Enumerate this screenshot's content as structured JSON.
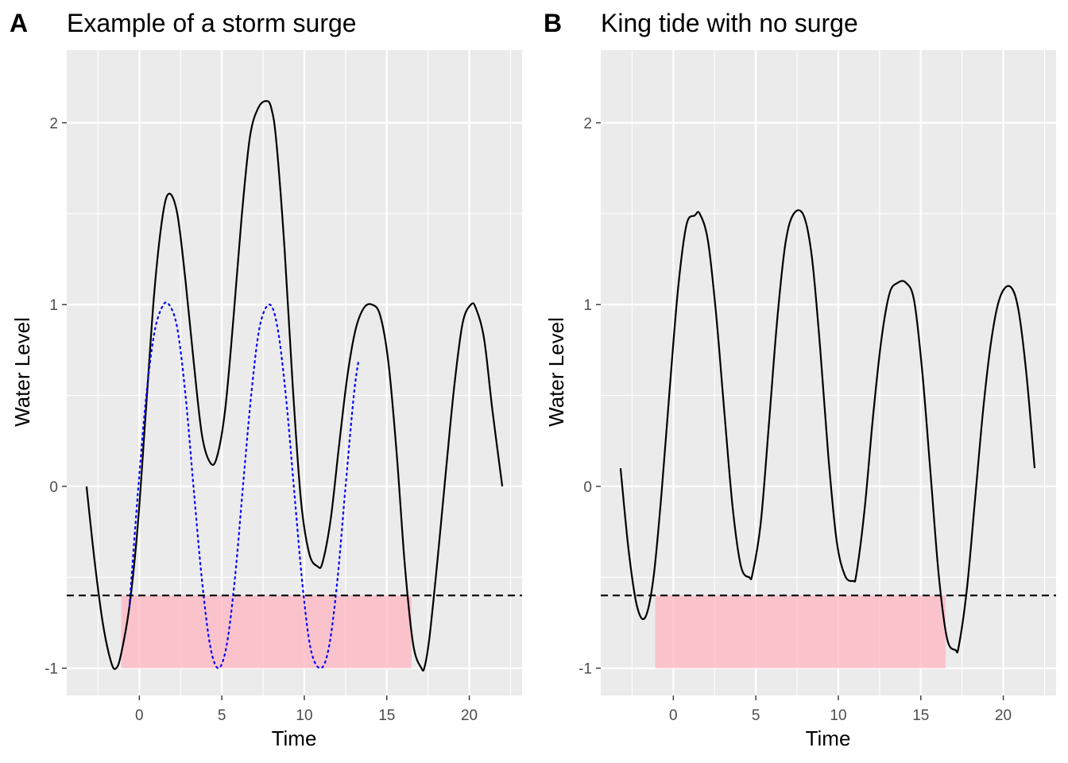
{
  "chart_data": [
    {
      "type": "line",
      "tag": "A",
      "title": "Example of a storm surge",
      "xlabel": "Time",
      "ylabel": "Water Level",
      "xlim": [
        -4.4,
        23.2
      ],
      "ylim": [
        -1.15,
        2.4
      ],
      "xticks": [
        0,
        5,
        10,
        15,
        20
      ],
      "yticks": [
        -1,
        0,
        1,
        2
      ],
      "grid": true,
      "threshold": -0.6,
      "shaded_region": {
        "x": [
          -1.1,
          16.5
        ],
        "y": [
          -1.0,
          -0.6
        ],
        "color": "#ffb6c1"
      },
      "series": [
        {
          "style": "solid",
          "color": "#000000",
          "x": [
            -3.2,
            -2.7,
            -2.2,
            -1.7,
            -1.4,
            -1.1,
            -0.6,
            -0.1,
            0.4,
            0.9,
            1.4,
            1.8,
            2.3,
            2.8,
            3.3,
            3.8,
            4.3,
            4.7,
            5.2,
            5.7,
            6.2,
            6.7,
            7.2,
            7.7,
            8.0,
            8.3,
            8.8,
            9.3,
            9.8,
            10.3,
            10.8,
            11.1,
            11.6,
            12.1,
            12.6,
            13.1,
            13.6,
            14.1,
            14.6,
            15.1,
            15.6,
            16.1,
            16.6,
            17.1,
            17.3,
            17.6,
            18.1,
            18.6,
            19.1,
            19.6,
            20.1,
            20.4,
            20.9,
            21.4,
            22.0
          ],
          "y": [
            0.0,
            -0.42,
            -0.76,
            -0.97,
            -1.0,
            -0.92,
            -0.66,
            -0.22,
            0.42,
            1.06,
            1.48,
            1.61,
            1.5,
            1.13,
            0.68,
            0.28,
            0.13,
            0.16,
            0.42,
            0.92,
            1.48,
            1.92,
            2.08,
            2.12,
            2.08,
            1.9,
            1.31,
            0.55,
            -0.08,
            -0.37,
            -0.44,
            -0.42,
            -0.18,
            0.22,
            0.6,
            0.86,
            0.98,
            1.0,
            0.94,
            0.68,
            0.18,
            -0.44,
            -0.87,
            -1.0,
            -0.99,
            -0.82,
            -0.38,
            0.1,
            0.56,
            0.9,
            1.0,
            0.98,
            0.81,
            0.42,
            0.0
          ]
        },
        {
          "style": "dotted",
          "color": "#0000ff",
          "x": [
            -0.6,
            -0.1,
            0.4,
            0.9,
            1.4,
            1.8,
            2.3,
            2.8,
            3.3,
            3.8,
            4.3,
            4.8,
            5.3,
            5.8,
            6.3,
            6.8,
            7.3,
            7.9,
            8.4,
            8.9,
            9.4,
            9.9,
            10.4,
            11.0,
            11.5,
            12.0,
            12.5,
            13.0,
            13.3
          ],
          "y": [
            -0.66,
            -0.05,
            0.48,
            0.84,
            0.99,
            1.0,
            0.87,
            0.5,
            -0.02,
            -0.52,
            -0.88,
            -1.0,
            -0.87,
            -0.5,
            0.02,
            0.52,
            0.88,
            1.0,
            0.86,
            0.48,
            -0.04,
            -0.55,
            -0.9,
            -1.0,
            -0.88,
            -0.52,
            0.0,
            0.5,
            0.7
          ]
        }
      ]
    },
    {
      "type": "line",
      "tag": "B",
      "title": "King tide with no surge",
      "xlabel": "Time",
      "ylabel": "Water Level",
      "xlim": [
        -4.4,
        23.2
      ],
      "ylim": [
        -1.15,
        2.4
      ],
      "xticks": [
        0,
        5,
        10,
        15,
        20
      ],
      "yticks": [
        -1,
        0,
        1,
        2
      ],
      "grid": true,
      "threshold": -0.6,
      "shaded_region": {
        "x": [
          -1.1,
          16.5
        ],
        "y": [
          -1.0,
          -0.6
        ],
        "color": "#ffb6c1"
      },
      "series": [
        {
          "style": "solid",
          "color": "#000000",
          "x": [
            -3.2,
            -2.7,
            -2.2,
            -1.7,
            -1.2,
            -0.7,
            -0.2,
            0.3,
            0.8,
            1.3,
            1.6,
            2.1,
            2.6,
            3.1,
            3.6,
            4.1,
            4.6,
            4.8,
            5.3,
            5.8,
            6.3,
            6.8,
            7.3,
            7.9,
            8.4,
            8.9,
            9.4,
            9.9,
            10.4,
            10.9,
            11.1,
            11.6,
            12.1,
            12.6,
            13.1,
            13.6,
            14.1,
            14.6,
            15.1,
            15.6,
            16.1,
            16.6,
            17.1,
            17.3,
            17.8,
            18.3,
            18.8,
            19.3,
            19.8,
            20.4,
            20.9,
            21.4,
            21.9
          ],
          "y": [
            0.1,
            -0.36,
            -0.66,
            -0.72,
            -0.5,
            -0.02,
            0.56,
            1.1,
            1.44,
            1.49,
            1.5,
            1.35,
            0.94,
            0.4,
            -0.12,
            -0.44,
            -0.5,
            -0.48,
            -0.2,
            0.35,
            0.92,
            1.34,
            1.5,
            1.49,
            1.26,
            0.76,
            0.16,
            -0.3,
            -0.49,
            -0.52,
            -0.48,
            -0.12,
            0.38,
            0.8,
            1.06,
            1.12,
            1.12,
            1.02,
            0.62,
            0.06,
            -0.5,
            -0.84,
            -0.9,
            -0.88,
            -0.56,
            -0.06,
            0.44,
            0.82,
            1.04,
            1.1,
            0.98,
            0.62,
            0.1
          ]
        }
      ]
    }
  ]
}
